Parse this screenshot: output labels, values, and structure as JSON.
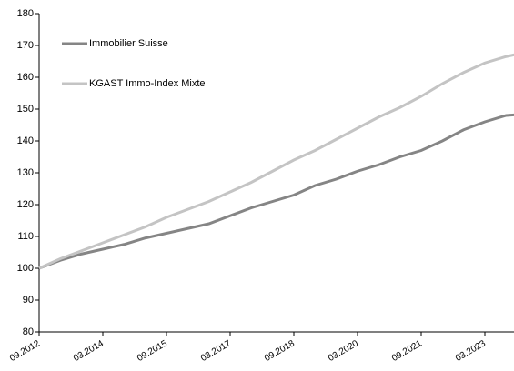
{
  "chart_data": {
    "type": "line",
    "categories": [
      "09.2012",
      null,
      null,
      "03.2014",
      null,
      null,
      "09.2015",
      null,
      null,
      "03.2017",
      null,
      null,
      "09.2018",
      null,
      null,
      "03.2020",
      null,
      null,
      "09.2021",
      null,
      null,
      "03.2023",
      null,
      null
    ],
    "series": [
      {
        "name": "Immobilier Suisse",
        "color": "#858585",
        "values": [
          100,
          102.5,
          104.5,
          106,
          107.5,
          109.5,
          111,
          112.5,
          114,
          116.5,
          119,
          121,
          123,
          126,
          128,
          130.5,
          132.5,
          135,
          137,
          140,
          143.5,
          146,
          148,
          148.5
        ]
      },
      {
        "name": "KGAST Immo-Index Mixte",
        "color": "#c4c4c4",
        "values": [
          100,
          103,
          105.5,
          108,
          110.5,
          113,
          116,
          118.5,
          121,
          124,
          127,
          130.5,
          134,
          137,
          140.5,
          144,
          147.5,
          150.5,
          154,
          158,
          161.5,
          164.5,
          166.5,
          168
        ]
      }
    ],
    "ylim": [
      80,
      180
    ],
    "yticks": [
      80,
      90,
      100,
      110,
      120,
      130,
      140,
      150,
      160,
      170,
      180
    ],
    "legend": "upper-left",
    "grid": false
  }
}
